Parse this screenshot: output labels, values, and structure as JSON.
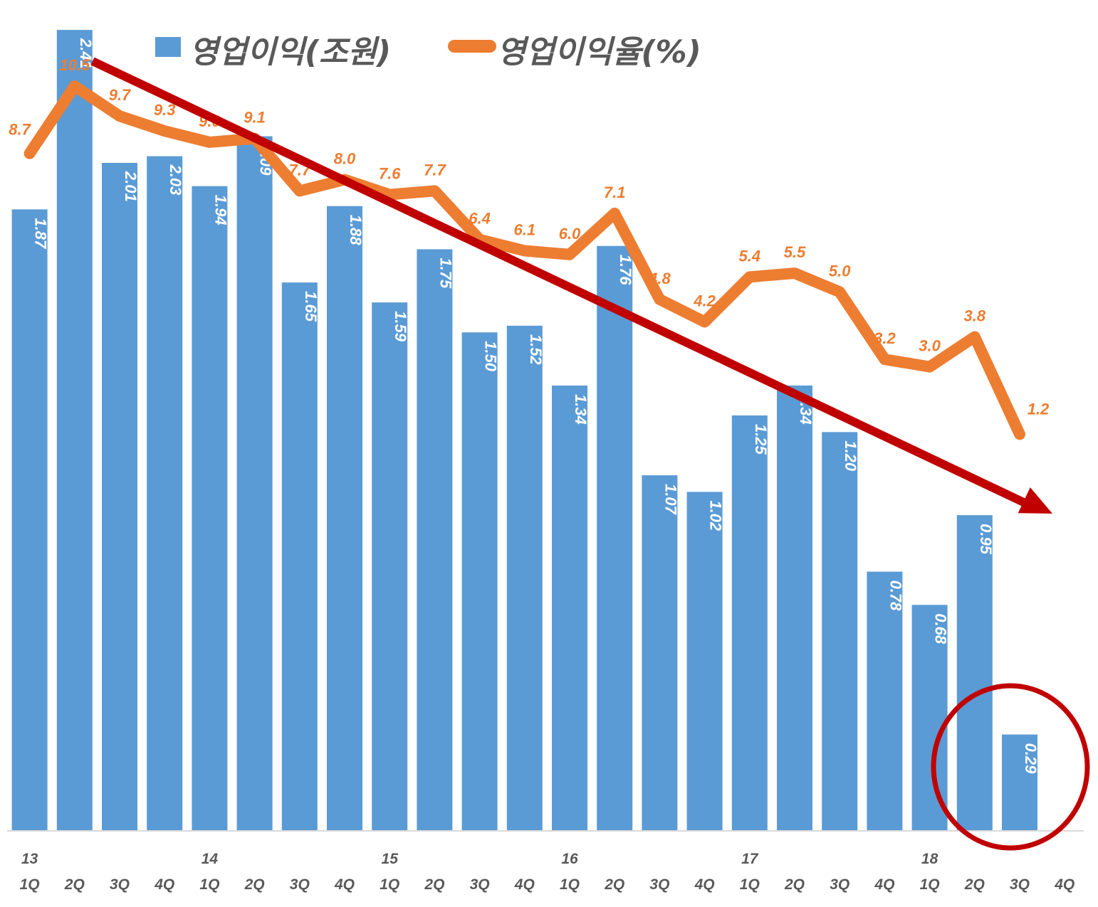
{
  "colors": {
    "bar": "#5b9bd5",
    "line": "#ed7d31",
    "trend_arrow": "#c00000",
    "highlight_circle": "#c00000",
    "axis": "#d9d9d9"
  },
  "legend": {
    "bar_label": "영업이익(조원)",
    "line_label": "영업이익율(%)"
  },
  "chart_data": {
    "type": "bar",
    "categories": [
      "1Q",
      "2Q",
      "3Q",
      "4Q",
      "1Q",
      "2Q",
      "3Q",
      "4Q",
      "1Q",
      "2Q",
      "3Q",
      "4Q",
      "1Q",
      "2Q",
      "3Q",
      "4Q",
      "1Q",
      "2Q",
      "3Q",
      "4Q",
      "1Q",
      "2Q",
      "3Q",
      "4Q"
    ],
    "year_labels": [
      "13",
      "",
      "",
      "",
      "14",
      "",
      "",
      "",
      "15",
      "",
      "",
      "",
      "16",
      "",
      "",
      "",
      "17",
      "",
      "",
      "",
      "18",
      "",
      "",
      ""
    ],
    "series": [
      {
        "name": "영업이익(조원)",
        "type": "bar",
        "values": [
          1.87,
          2.41,
          2.01,
          2.03,
          1.94,
          2.09,
          1.65,
          1.88,
          1.59,
          1.75,
          1.5,
          1.52,
          1.34,
          1.76,
          1.07,
          1.02,
          1.25,
          1.34,
          1.2,
          0.78,
          0.68,
          0.95,
          0.29,
          null
        ],
        "labels": [
          "1.87",
          "2.41",
          "2.01",
          "2.03",
          "1.94",
          "2.09",
          "1.65",
          "1.88",
          "1.59",
          "1.75",
          "1.50",
          "1.52",
          "1.34",
          "1.76",
          "1.07",
          "1.02",
          "1.25",
          "1.34",
          "1.20",
          "0.78",
          "0.68",
          "0.95",
          "0.29",
          ""
        ]
      },
      {
        "name": "영업이익율(%)",
        "type": "line",
        "values": [
          8.7,
          10.5,
          9.7,
          9.3,
          9.0,
          9.1,
          7.7,
          8.0,
          7.6,
          7.7,
          6.4,
          6.1,
          6.0,
          7.1,
          4.8,
          4.2,
          5.4,
          5.5,
          5.0,
          3.2,
          3.0,
          3.8,
          1.2,
          null
        ],
        "labels": [
          "8.7",
          "10.5",
          "9.7",
          "9.3",
          "9.0",
          "9.1",
          "7.7",
          "8.0",
          "7.6",
          "7.7",
          "6.4",
          "6.1",
          "6.0",
          "7.1",
          "4.8",
          "4.2",
          "5.4",
          "5.5",
          "5.0",
          "3.2",
          "3.0",
          "3.8",
          "1.2",
          ""
        ]
      }
    ],
    "bar_axis": {
      "ylim": [
        0,
        2.5
      ]
    },
    "line_axis": {
      "ylim": [
        -9.4,
        12.8
      ]
    },
    "grid": false,
    "legend_position": "top",
    "annotations": [
      {
        "kind": "trend-arrow",
        "direction": "down-right",
        "from_category_index": 1,
        "to_category_index": 23
      },
      {
        "kind": "highlight-circle",
        "around_category_index": 22
      }
    ]
  }
}
